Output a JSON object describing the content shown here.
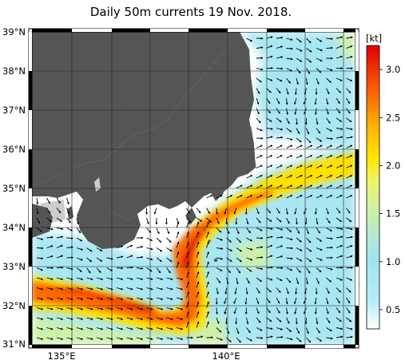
{
  "title": "Daily 50m currents 19 Nov. 2018.",
  "lat_labels": [
    "31°N",
    "32°N",
    "33°N",
    "34°N",
    "35°N",
    "36°N",
    "37°N",
    "38°N",
    "39°N"
  ],
  "lon_labels": [
    "135°E",
    "140°E"
  ],
  "colorbar": {
    "unit": "[kt]",
    "ticks": [
      "0.5",
      "1.0",
      "1.5",
      "2.0",
      "2.5",
      "3.0"
    ],
    "tick_values": [
      0.5,
      1.0,
      1.5,
      2.0,
      2.5,
      3.0
    ],
    "range": [
      0.3,
      3.25
    ]
  },
  "map_extent": {
    "lon": [
      134,
      142.2
    ],
    "lat": [
      31,
      39
    ]
  },
  "colors": {
    "land": "#555555",
    "coast_shelf": "#cccccc",
    "weak": "#a8e6f2",
    "moderate": "#cdf0a8",
    "strong": "#ffe000",
    "very_strong": "#ff6000",
    "max": "#e01000"
  }
}
